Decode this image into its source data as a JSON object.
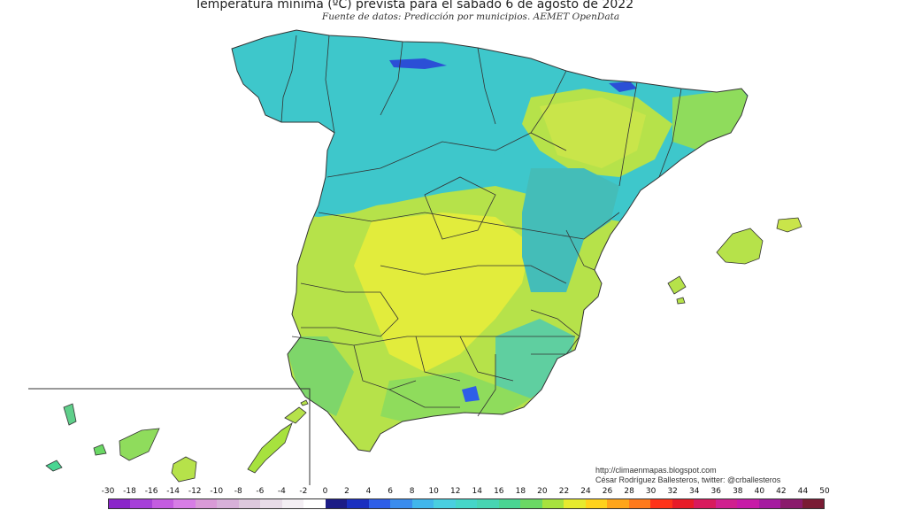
{
  "title": "Temperatura mínima (ºC) prevista para el sábado 6 de agosto de 2022",
  "subtitle": "Fuente de datos: Predicción por municipios. AEMET OpenData",
  "credit": {
    "line1": "http://climaenmapas.blogspot.com",
    "line2": "César Rodríguez Ballesteros, twitter: @crballesteros"
  },
  "legend": {
    "ticks": [
      "-30",
      "-18",
      "-16",
      "-14",
      "-12",
      "-10",
      "-8",
      "-6",
      "-4",
      "-2",
      "0",
      "2",
      "4",
      "6",
      "8",
      "10",
      "12",
      "14",
      "16",
      "18",
      "20",
      "22",
      "24",
      "26",
      "28",
      "30",
      "32",
      "34",
      "36",
      "38",
      "40",
      "42",
      "44",
      "50"
    ],
    "colors": [
      "#8a25c9",
      "#a640d8",
      "#c45ce0",
      "#d77de6",
      "#d99ad7",
      "#d7b0d9",
      "#ddc8dd",
      "#e8dce8",
      "#f4eff4",
      "#ffffff",
      "#1c1c86",
      "#1a2fc0",
      "#2e5ee8",
      "#3a8ced",
      "#41b6eb",
      "#49cfe0",
      "#45d6c8",
      "#47d5b2",
      "#49d592",
      "#6ad864",
      "#a7e23e",
      "#e6ea2e",
      "#ffd21c",
      "#ffa51a",
      "#ff7a1b",
      "#ff3319",
      "#e81b28",
      "#d81a5d",
      "#d0208f",
      "#c71aa7",
      "#a51aa0",
      "#8a1a6c",
      "#7a1b34"
    ]
  },
  "map_colors": {
    "cool": "#3ec7cb",
    "teal": "#44bdb8",
    "green": "#6fd36f",
    "lime": "#b6e24a",
    "yellow": "#e2ec3c",
    "blue_spot": "#2b4fd6",
    "border": "#333333"
  }
}
